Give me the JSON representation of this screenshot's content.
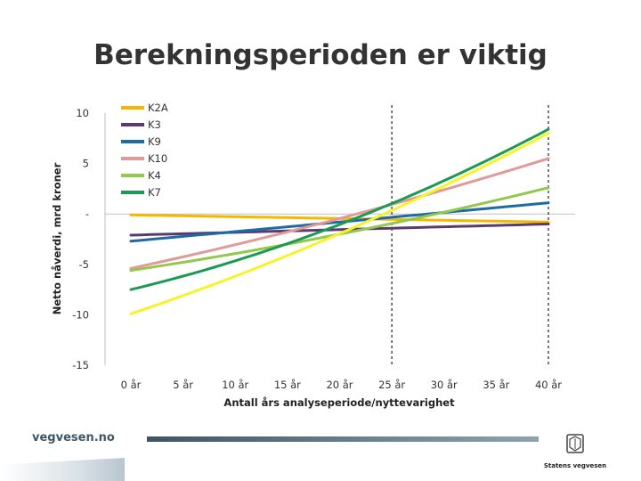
{
  "slide": {
    "title": "Berekningsperioden er viktig",
    "footer_brand": "vegvesen.no",
    "logo_text": "Statens vegvesen"
  },
  "chart_data": {
    "type": "line",
    "xlabel": "Antall års analyseperiode/nyttevarighet",
    "ylabel": "Netto nåverdi, mrd kroner",
    "x": [
      0,
      40
    ],
    "x_tick_labels": [
      "0 år",
      "5 år",
      "10 år",
      "15 år",
      "20 år",
      "25 år",
      "30 år",
      "35 år",
      "40 år"
    ],
    "y_tick_labels": [
      "10",
      "5",
      "-",
      "-5",
      "-10",
      "-15"
    ],
    "ylim": [
      -15,
      10
    ],
    "grid": false,
    "legend_position": "top-left",
    "reference_lines_x": [
      25,
      40
    ],
    "series": [
      {
        "name": "K2A",
        "color": "#f5b800",
        "values": [
          -0.1,
          -0.8
        ],
        "curve": 0
      },
      {
        "name": "K3",
        "color": "#5b3a6e",
        "values": [
          -2.1,
          -1.0
        ],
        "curve": 0
      },
      {
        "name": "K9",
        "color": "#1f6aa5",
        "values": [
          -2.7,
          1.1
        ],
        "curve": 0
      },
      {
        "name": "K10",
        "color": "#e09a98",
        "values": [
          -5.4,
          5.5
        ],
        "curve": 0.5
      },
      {
        "name": "K4",
        "color": "#92c84b",
        "values": [
          -5.6,
          2.6
        ],
        "curve": 0.5
      },
      {
        "name": "K7",
        "color": "#1a9a52",
        "values": [
          -7.5,
          8.4
        ],
        "curve": 1.5
      },
      {
        "name": "",
        "color": "#f6f32a",
        "values": [
          -9.9,
          8.0
        ],
        "curve": 1.0
      }
    ]
  }
}
